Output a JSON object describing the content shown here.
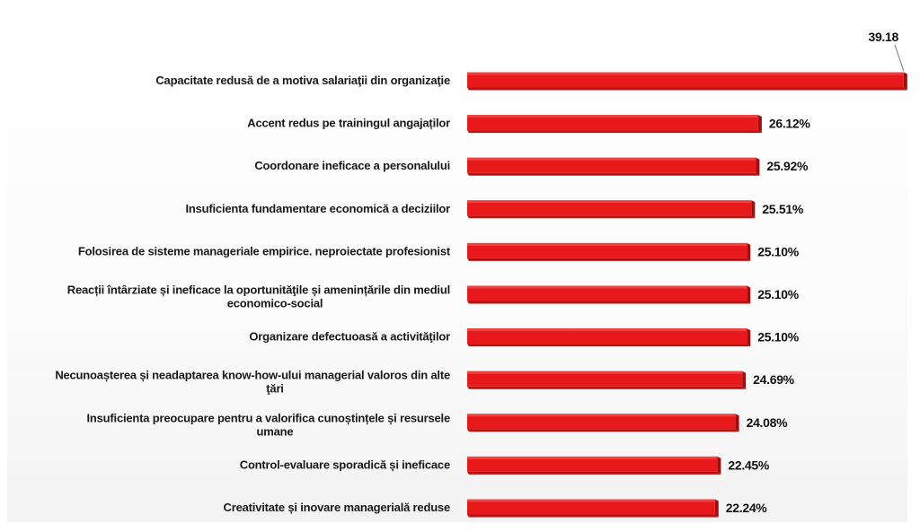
{
  "chart_data": {
    "type": "bar",
    "orientation": "horizontal",
    "categories": [
      [
        "Capacitate redusă de a motiva salariaţii din organizaţie"
      ],
      [
        "Accent redus pe trainingul angajaților"
      ],
      [
        "Coordonare ineficace a personalului"
      ],
      [
        "Insuficienta fundamentare economică a deciziilor"
      ],
      [
        "Folosirea de sisteme manageriale empirice. neproiectate profesionist"
      ],
      [
        "Reacții întârziate și ineficace la oportunităţile și amenințările din mediul",
        "economico-social"
      ],
      [
        "Organizare defectuoasă a activităţilor"
      ],
      [
        "Necunoașterea și neadaptarea know-how-ului managerial valoros din alte",
        "ţări"
      ],
      [
        "Insuficienta preocupare pentru a valorifica cunoștințele și resursele",
        "umane"
      ],
      [
        "Control-evaluare sporadică și ineficace"
      ],
      [
        "Creativitate și inovare managerială reduse"
      ]
    ],
    "values": [
      39.18,
      26.12,
      25.92,
      25.51,
      25.1,
      25.1,
      25.1,
      24.69,
      24.08,
      22.45,
      22.24
    ],
    "value_labels": [
      "39.18",
      "26.12%",
      "25.92%",
      "25.51%",
      "25.10%",
      "25.10%",
      "25.10%",
      "24.69%",
      "24.08%",
      "22.45%",
      "22.24%"
    ],
    "bar_color": "#e8191a",
    "bar_shadow_color": "#9e0f10",
    "grid": false,
    "legend": "none"
  }
}
